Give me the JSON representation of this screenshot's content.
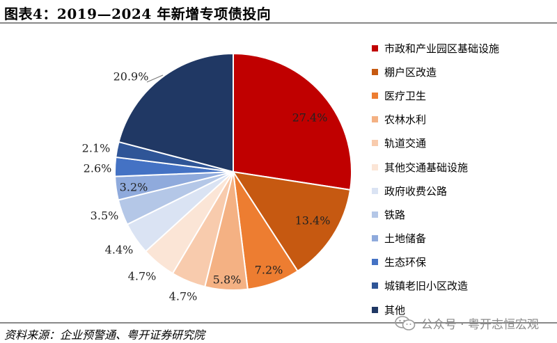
{
  "title": "图表4：2019—2024 年新增专项债投向",
  "source": "资料来源：企业预警通、粤开证券研究院",
  "watermark": "公众号 · 粤开志恒宏观",
  "chart_data": {
    "type": "pie",
    "title": "",
    "slices": [
      {
        "name": "市政和产业园区基础设施",
        "value": 27.4,
        "label": "27.4%",
        "color": "#C00000"
      },
      {
        "name": "棚户区改造",
        "value": 13.4,
        "label": "13.4%",
        "color": "#C65911"
      },
      {
        "name": "医疗卫生",
        "value": 7.2,
        "label": "7.2%",
        "color": "#ED7D31"
      },
      {
        "name": "农林水利",
        "value": 5.8,
        "label": "5.8%",
        "color": "#F4B183"
      },
      {
        "name": "轨道交通",
        "value": 4.7,
        "label": "4.7%",
        "color": "#F8CBAD"
      },
      {
        "name": "其他交通基础设施",
        "value": 4.7,
        "label": "4.7%",
        "color": "#FBE5D6"
      },
      {
        "name": "政府收费公路",
        "value": 4.4,
        "label": "4.4%",
        "color": "#DAE3F3"
      },
      {
        "name": "铁路",
        "value": 3.5,
        "label": "3.5%",
        "color": "#B4C7E7"
      },
      {
        "name": "土地储备",
        "value": 3.2,
        "label": "3.2%",
        "color": "#8FAADC"
      },
      {
        "name": "生态环保",
        "value": 2.6,
        "label": "2.6%",
        "color": "#4472C4"
      },
      {
        "name": "城镇老旧小区改造",
        "value": 2.1,
        "label": "2.1%",
        "color": "#2F5597"
      },
      {
        "name": "其他",
        "value": 20.9,
        "label": "20.9%",
        "color": "#203864"
      }
    ],
    "start_angle": "12 o'clock",
    "direction": "clockwise",
    "legend_position": "right"
  }
}
